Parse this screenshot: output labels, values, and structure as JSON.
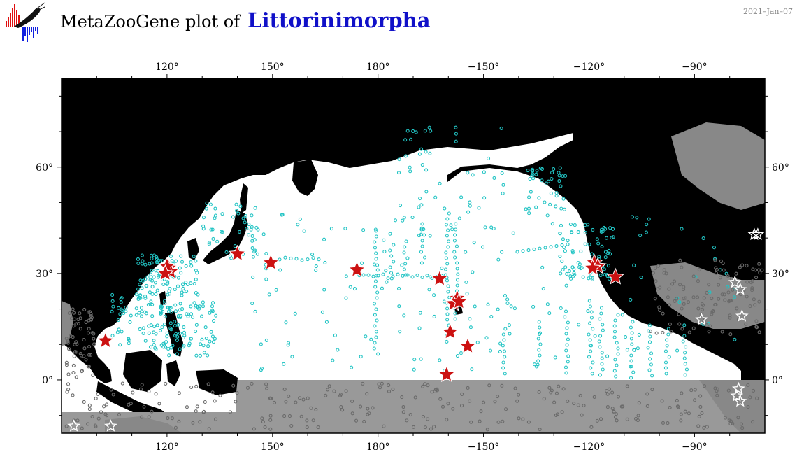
{
  "header": {
    "title_prefix": "MetaZooGene plot of",
    "taxon": "Littorinimorpha",
    "date": "2021–Jan–07",
    "logo_icon": "metazoogene-logo-icon"
  },
  "map": {
    "projection": "equirectangular",
    "lon_range": [
      90,
      290
    ],
    "lat_range": [
      -15,
      85
    ],
    "lon_ticks": [
      {
        "lon": 120,
        "label": "120°"
      },
      {
        "lon": 150,
        "label": "150°"
      },
      {
        "lon": 180,
        "label": "180°"
      },
      {
        "lon": 210,
        "label": "−150°"
      },
      {
        "lon": 240,
        "label": "−120°"
      },
      {
        "lon": 270,
        "label": "−90°"
      }
    ],
    "lat_ticks": [
      {
        "lat": 60,
        "label": "60°"
      },
      {
        "lat": 30,
        "label": "30°"
      },
      {
        "lat": 0,
        "label": "0°"
      }
    ],
    "colors": {
      "ocean_in_region": "#ffffff",
      "ocean_out_region": "#999999",
      "land_in_region": "#000000",
      "land_out_region": "#999999",
      "sample_in_region": "#22c4c4",
      "sample_out_region": "#6a6a6a",
      "record_in_region": "#cc1111",
      "record_out_region": "#ffffff"
    },
    "records_in_region": [
      {
        "lon": 120.5,
        "lat": 31.5
      },
      {
        "lon": 121.0,
        "lat": 30.5
      },
      {
        "lon": 120.0,
        "lat": 32.0
      },
      {
        "lon": 119.5,
        "lat": 30.0
      },
      {
        "lon": 102.5,
        "lat": 11.0
      },
      {
        "lon": 140.0,
        "lat": 35.5
      },
      {
        "lon": 149.5,
        "lat": 33.0
      },
      {
        "lon": 174.0,
        "lat": 31.0
      },
      {
        "lon": 197.5,
        "lat": 28.5
      },
      {
        "lon": 202.5,
        "lat": 23.0
      },
      {
        "lon": 201.5,
        "lat": 21.5
      },
      {
        "lon": 203.0,
        "lat": 22.0
      },
      {
        "lon": 200.5,
        "lat": 13.5
      },
      {
        "lon": 205.5,
        "lat": 9.5
      },
      {
        "lon": 199.5,
        "lat": 1.5
      },
      {
        "lon": 241.5,
        "lat": 33.0
      },
      {
        "lon": 242.5,
        "lat": 32.0
      },
      {
        "lon": 241.0,
        "lat": 31.5
      },
      {
        "lon": 247.5,
        "lat": 29.0
      }
    ],
    "records_out_region": [
      {
        "lon": 93.5,
        "lat": -13.0
      },
      {
        "lon": 104.0,
        "lat": -13.0
      },
      {
        "lon": 287.0,
        "lat": 41.0
      },
      {
        "lon": 288.0,
        "lat": 41.0
      },
      {
        "lon": 281.5,
        "lat": 27.5
      },
      {
        "lon": 283.0,
        "lat": 25.5
      },
      {
        "lon": 272.0,
        "lat": 17.0
      },
      {
        "lon": 283.5,
        "lat": 18.0
      },
      {
        "lon": 282.5,
        "lat": -2.5
      },
      {
        "lon": 282.0,
        "lat": -4.5
      },
      {
        "lon": 283.0,
        "lat": -6.0
      }
    ]
  }
}
